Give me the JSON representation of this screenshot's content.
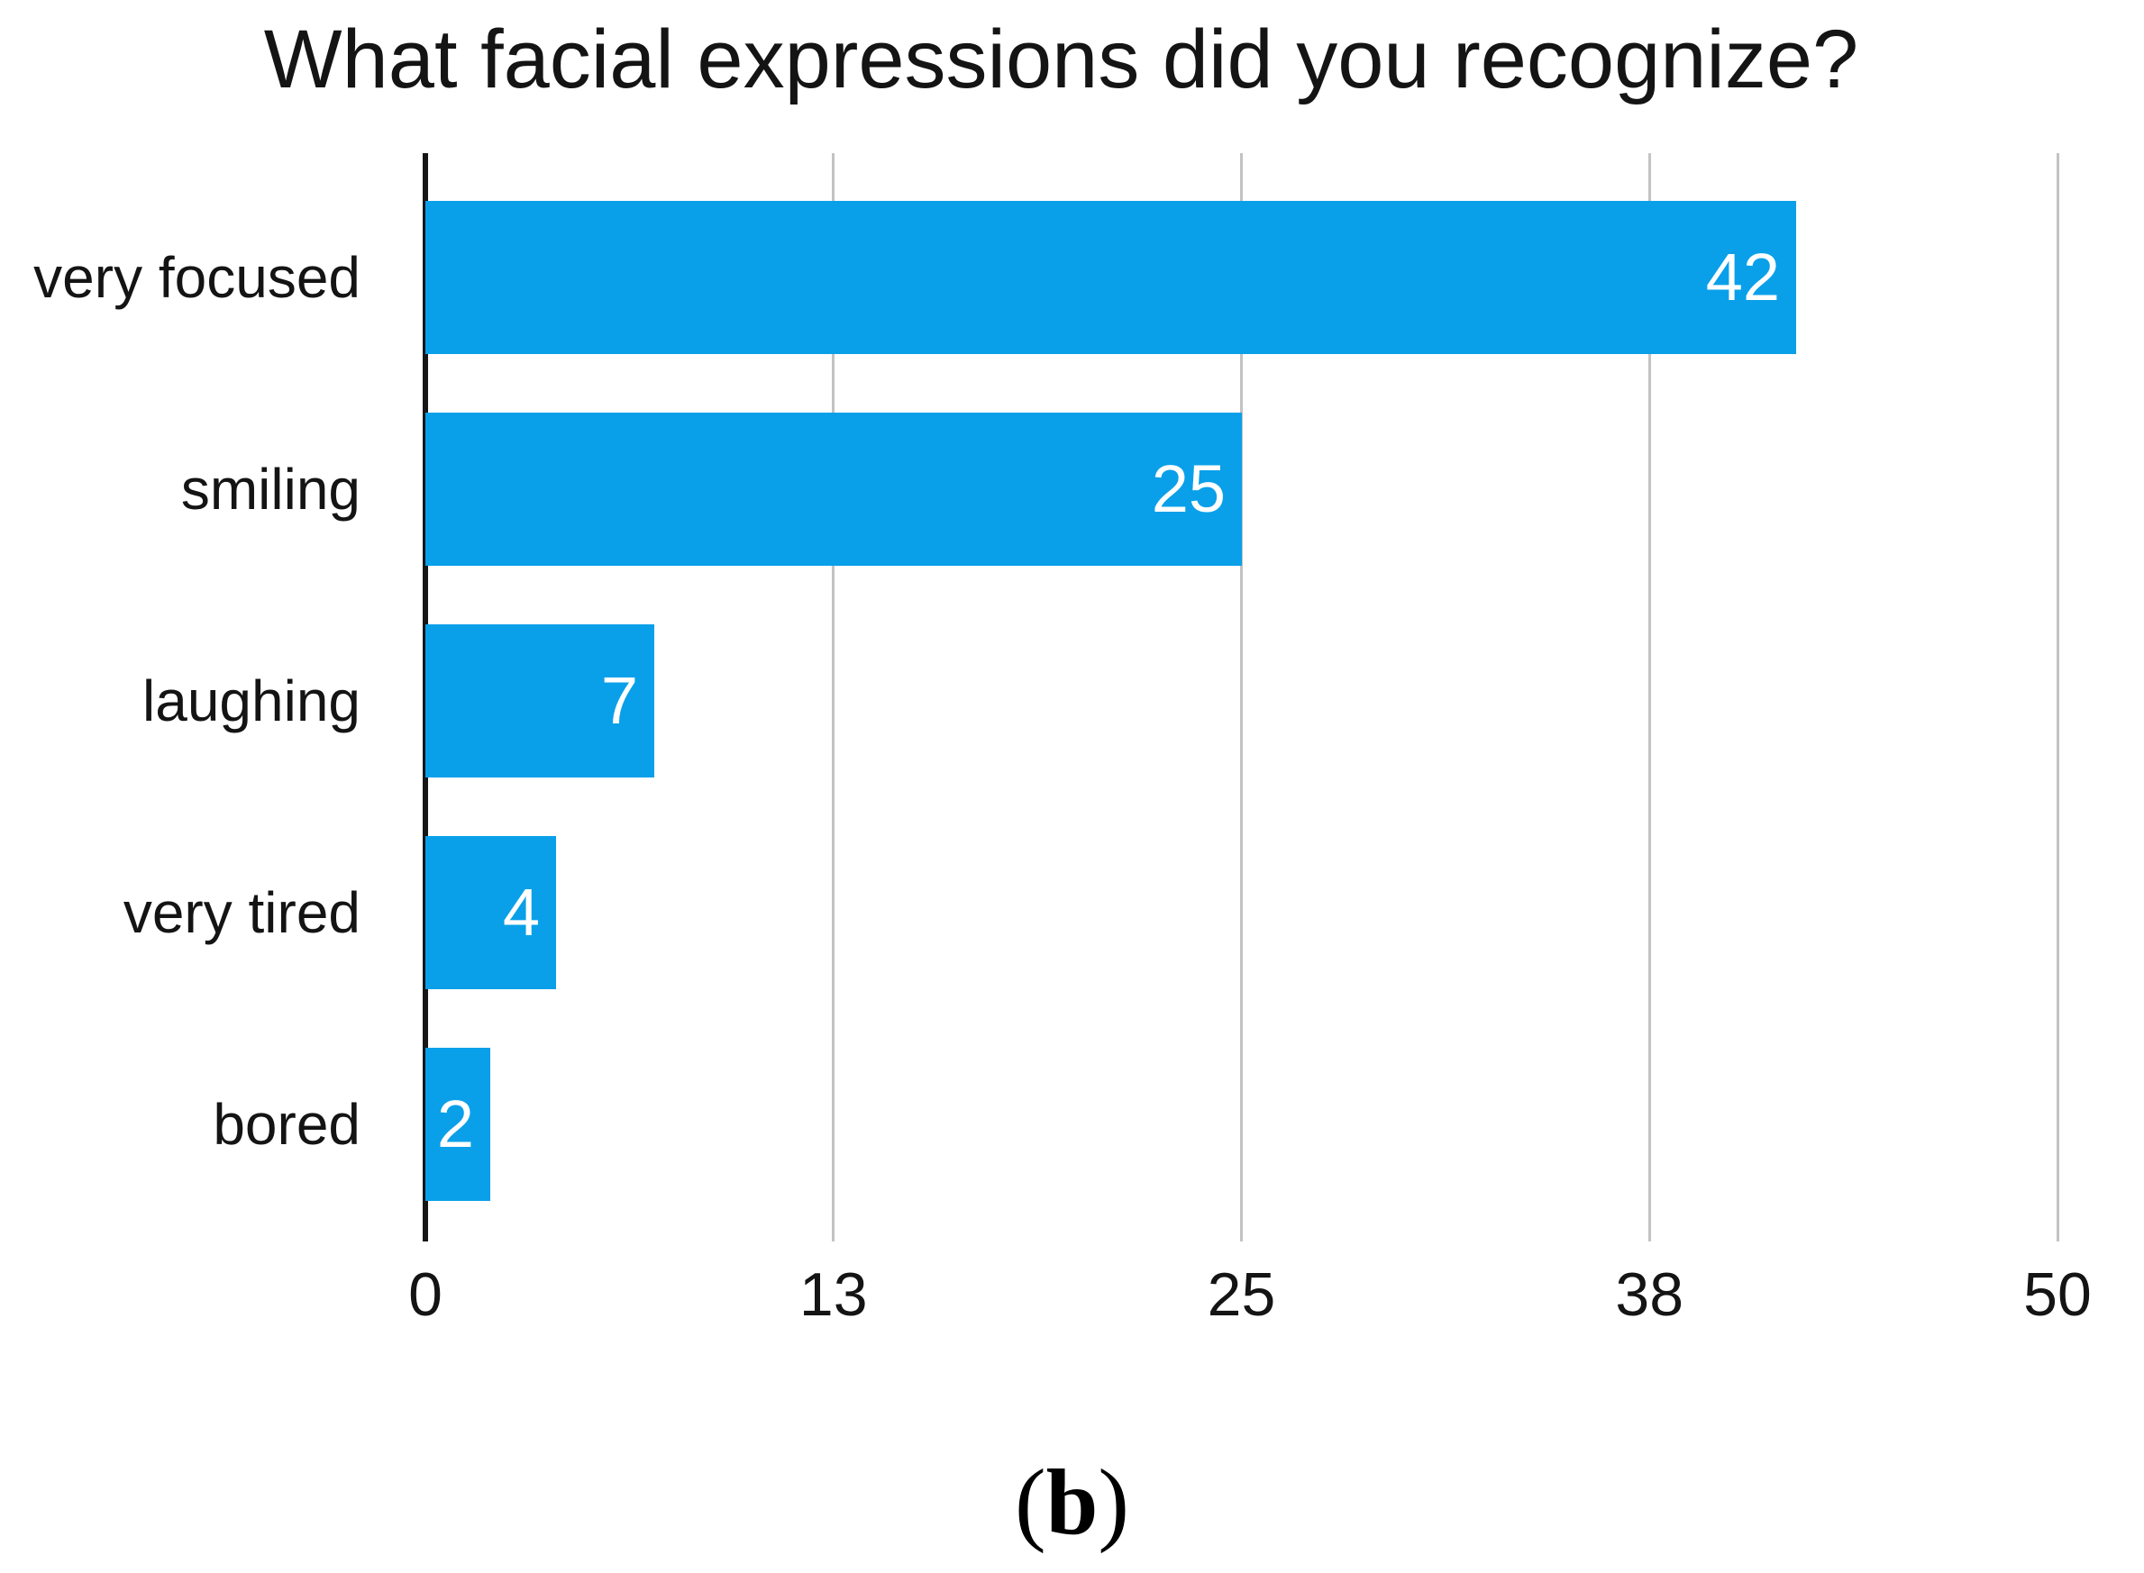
{
  "figure": {
    "caption": {
      "open_paren": "(",
      "letter": "b",
      "close_paren": ")"
    }
  },
  "chart_data": {
    "type": "bar",
    "orientation": "horizontal",
    "title": "What facial expressions did you recognize?",
    "categories": [
      "very focused",
      "smiling",
      "laughing",
      "very tired",
      "bored"
    ],
    "values": [
      42,
      25,
      7,
      4,
      2
    ],
    "xlabel": "",
    "ylabel": "",
    "xlim": [
      0,
      50
    ],
    "x_ticks": [
      {
        "value": 0,
        "label": "0"
      },
      {
        "value": 12.5,
        "label": "13"
      },
      {
        "value": 25,
        "label": "25"
      },
      {
        "value": 37.5,
        "label": "38"
      },
      {
        "value": 50,
        "label": "50"
      }
    ],
    "grid": true,
    "legend": false,
    "bar_color": "#09A0E9",
    "value_label_color": "#ffffff",
    "axis_color": "#161616",
    "gridline_color": "#c3c3c3"
  }
}
